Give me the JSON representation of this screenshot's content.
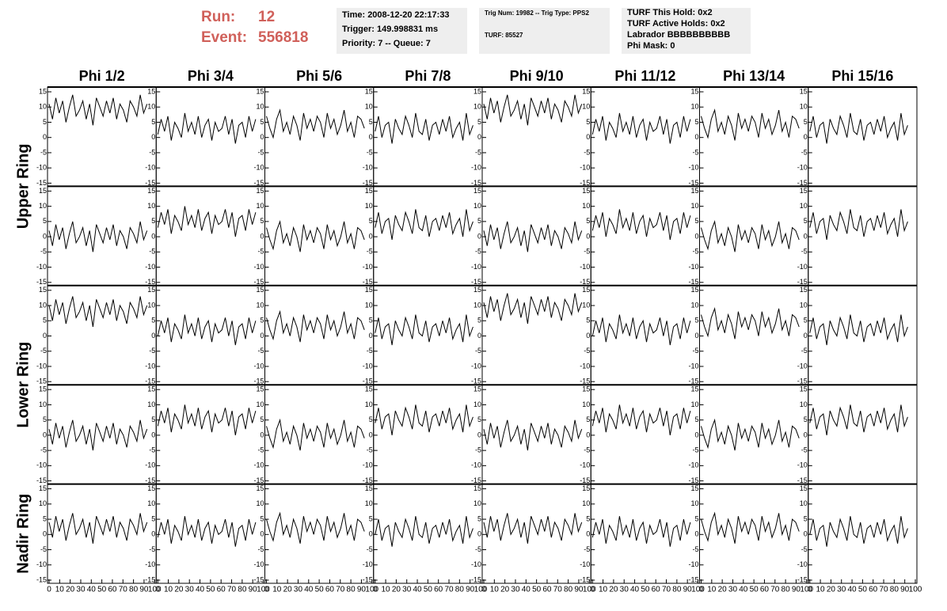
{
  "header": {
    "run_label": "Run:",
    "run": "12",
    "event_label": "Event:",
    "event": "556818",
    "info": [
      [
        "Time: 2008-12-20 22:17:33",
        "Trigger: 149.998831 ms",
        "Priority: 7 -- Queue: 7"
      ],
      [
        "Trig Num: 19982 -- Trig Type: PPS2",
        "TURF: 85527"
      ],
      [
        "TURF This Hold: 0x2",
        "TURF Active Holds: 0x2",
        "Labrador BBBBBBBBBB",
        "Phi Mask: 0"
      ]
    ]
  },
  "chart_data": {
    "type": "line",
    "color": "#000000",
    "columns": [
      "Phi 1/2",
      "Phi 3/4",
      "Phi 5/6",
      "Phi 7/8",
      "Phi 9/10",
      "Phi 11/12",
      "Phi 13/14",
      "Phi 15/16"
    ],
    "rows": [
      "Upper Ring",
      "Lower Ring",
      "Nadir Ring"
    ],
    "xlim": [
      0,
      100
    ],
    "xticks": [
      0,
      10,
      20,
      30,
      40,
      50,
      60,
      70,
      80,
      90,
      100
    ],
    "ylim": [
      -15,
      15
    ],
    "yticks": [
      15,
      10,
      5,
      0,
      -5,
      -10,
      -15
    ],
    "x": [
      0,
      3.2,
      6.4,
      9.6,
      12.8,
      16,
      19.2,
      22.4,
      25.6,
      28.8,
      32,
      35.2,
      38.4,
      41.6,
      44.8,
      48,
      51.2,
      54.4,
      57.6,
      60.8,
      64,
      67.2,
      70.4,
      73.6,
      76.8,
      80,
      83.2,
      86.4,
      89.6,
      92.8
    ],
    "panels": [
      {
        "values": [
          11,
          6,
          13,
          8,
          12,
          5,
          10,
          14,
          7,
          9,
          12,
          6,
          11,
          4,
          13,
          10,
          7,
          12,
          8,
          13,
          6,
          11,
          9,
          5,
          12,
          10,
          7,
          14,
          8,
          11
        ]
      },
      {
        "values": [
          1,
          6,
          2,
          7,
          -1,
          5,
          3,
          0,
          8,
          2,
          5,
          1,
          7,
          0,
          4,
          6,
          -1,
          5,
          2,
          3,
          7,
          1,
          6,
          -2,
          4,
          5,
          0,
          7,
          2,
          6
        ]
      },
      {
        "values": [
          7,
          3,
          0,
          6,
          9,
          2,
          5,
          1,
          7,
          4,
          -1,
          8,
          3,
          6,
          2,
          7,
          5,
          0,
          8,
          3,
          6,
          1,
          4,
          9,
          2,
          5,
          0,
          7,
          6,
          3
        ]
      },
      {
        "values": [
          2,
          7,
          0,
          4,
          5,
          -2,
          6,
          3,
          1,
          7,
          4,
          0,
          8,
          2,
          1,
          6,
          -1,
          4,
          5,
          1,
          6,
          2,
          7,
          0,
          3,
          5,
          -1,
          8,
          1,
          4
        ]
      },
      {
        "values": [
          11,
          6,
          13,
          8,
          12,
          5,
          10,
          14,
          7,
          9,
          12,
          6,
          11,
          4,
          13,
          10,
          7,
          12,
          8,
          13,
          6,
          11,
          9,
          5,
          12,
          10,
          7,
          14,
          8,
          11
        ]
      },
      {
        "values": [
          1,
          6,
          2,
          7,
          -1,
          5,
          3,
          0,
          8,
          2,
          5,
          1,
          7,
          0,
          4,
          6,
          -1,
          5,
          2,
          3,
          7,
          1,
          6,
          -2,
          4,
          5,
          0,
          7,
          2,
          6
        ]
      },
      {
        "values": [
          7,
          3,
          0,
          6,
          9,
          2,
          5,
          1,
          7,
          4,
          -1,
          8,
          3,
          6,
          2,
          7,
          5,
          0,
          8,
          3,
          6,
          1,
          4,
          9,
          2,
          5,
          0,
          7,
          6,
          3
        ]
      },
      {
        "values": [
          2,
          7,
          0,
          4,
          5,
          -2,
          6,
          3,
          1,
          7,
          4,
          0,
          8,
          2,
          1,
          6,
          -1,
          4,
          5,
          1,
          6,
          2,
          7,
          0,
          3,
          5,
          -1,
          8,
          1,
          4
        ]
      },
      {
        "values": [
          2,
          -3,
          4,
          -1,
          3,
          -4,
          1,
          5,
          -2,
          0,
          3,
          -3,
          2,
          -5,
          4,
          1,
          -2,
          3,
          -1,
          4,
          -3,
          2,
          0,
          -4,
          3,
          1,
          -2,
          5,
          -1,
          2
        ]
      },
      {
        "values": [
          3,
          8,
          4,
          9,
          1,
          7,
          5,
          2,
          10,
          4,
          7,
          3,
          9,
          2,
          6,
          8,
          1,
          7,
          4,
          5,
          9,
          3,
          8,
          0,
          6,
          7,
          2,
          9,
          4,
          8
        ]
      },
      {
        "values": [
          3,
          -1,
          -4,
          2,
          5,
          -2,
          1,
          -3,
          3,
          0,
          -5,
          4,
          -1,
          2,
          -2,
          3,
          1,
          -4,
          4,
          -1,
          2,
          -3,
          0,
          5,
          -2,
          1,
          -4,
          3,
          2,
          -1
        ]
      },
      {
        "values": [
          3,
          8,
          1,
          5,
          6,
          -1,
          7,
          4,
          2,
          8,
          5,
          1,
          9,
          3,
          2,
          7,
          0,
          5,
          6,
          2,
          7,
          3,
          8,
          1,
          4,
          6,
          0,
          9,
          2,
          5
        ]
      },
      {
        "values": [
          2,
          -3,
          4,
          -1,
          3,
          -4,
          1,
          5,
          -2,
          0,
          3,
          -3,
          2,
          -5,
          4,
          1,
          -2,
          3,
          -1,
          4,
          -3,
          2,
          0,
          -4,
          3,
          1,
          -2,
          5,
          -1,
          2
        ]
      },
      {
        "values": [
          2,
          7,
          3,
          8,
          0,
          6,
          4,
          1,
          9,
          3,
          6,
          2,
          8,
          1,
          5,
          7,
          0,
          6,
          3,
          4,
          8,
          2,
          7,
          -1,
          5,
          6,
          1,
          8,
          3,
          7
        ]
      },
      {
        "values": [
          3,
          -1,
          -4,
          2,
          5,
          -2,
          1,
          -3,
          3,
          0,
          -5,
          4,
          -1,
          2,
          -2,
          3,
          1,
          -4,
          4,
          -1,
          2,
          -3,
          0,
          5,
          -2,
          1,
          -4,
          3,
          2,
          -1
        ]
      },
      {
        "values": [
          3,
          8,
          1,
          5,
          6,
          -1,
          7,
          4,
          2,
          8,
          5,
          1,
          9,
          3,
          2,
          7,
          0,
          5,
          6,
          2,
          7,
          3,
          8,
          1,
          4,
          6,
          0,
          9,
          2,
          5
        ]
      },
      {
        "values": [
          10,
          5,
          12,
          7,
          11,
          4,
          9,
          13,
          6,
          8,
          11,
          5,
          10,
          3,
          12,
          9,
          6,
          11,
          7,
          12,
          5,
          10,
          8,
          4,
          11,
          9,
          6,
          13,
          7,
          10
        ]
      },
      {
        "values": [
          0,
          5,
          1,
          6,
          -2,
          4,
          2,
          -1,
          7,
          1,
          4,
          0,
          6,
          -1,
          3,
          5,
          -2,
          4,
          1,
          2,
          6,
          0,
          5,
          -3,
          3,
          4,
          -1,
          6,
          1,
          5
        ]
      },
      {
        "values": [
          6,
          2,
          -1,
          5,
          8,
          1,
          4,
          0,
          6,
          3,
          -2,
          7,
          2,
          5,
          1,
          6,
          4,
          -1,
          7,
          2,
          5,
          0,
          3,
          8,
          1,
          4,
          -1,
          6,
          5,
          2
        ]
      },
      {
        "values": [
          1,
          6,
          -1,
          3,
          4,
          -3,
          5,
          2,
          0,
          6,
          3,
          -1,
          7,
          1,
          0,
          5,
          -2,
          3,
          4,
          0,
          5,
          1,
          6,
          -1,
          2,
          4,
          -2,
          7,
          0,
          3
        ]
      },
      {
        "values": [
          11,
          6,
          13,
          8,
          12,
          5,
          10,
          14,
          7,
          9,
          12,
          6,
          11,
          4,
          13,
          10,
          7,
          12,
          8,
          13,
          6,
          11,
          9,
          5,
          12,
          10,
          7,
          14,
          8,
          11
        ]
      },
      {
        "values": [
          0,
          5,
          1,
          6,
          -2,
          4,
          2,
          -1,
          7,
          1,
          4,
          0,
          6,
          -1,
          3,
          5,
          -2,
          4,
          1,
          2,
          6,
          0,
          5,
          -3,
          3,
          4,
          -1,
          6,
          1,
          5
        ]
      },
      {
        "values": [
          7,
          3,
          0,
          6,
          9,
          2,
          5,
          1,
          7,
          4,
          -1,
          8,
          3,
          6,
          2,
          7,
          5,
          0,
          8,
          3,
          6,
          1,
          4,
          9,
          2,
          5,
          0,
          7,
          6,
          3
        ]
      },
      {
        "values": [
          1,
          6,
          -1,
          3,
          4,
          -3,
          5,
          2,
          0,
          6,
          3,
          -1,
          7,
          1,
          0,
          5,
          -2,
          3,
          4,
          0,
          5,
          1,
          6,
          -1,
          2,
          4,
          -2,
          7,
          0,
          3
        ]
      },
      {
        "values": [
          2,
          -3,
          4,
          -1,
          3,
          -4,
          1,
          5,
          -2,
          0,
          3,
          -3,
          2,
          -5,
          4,
          1,
          -2,
          3,
          -1,
          4,
          -3,
          2,
          0,
          -4,
          3,
          1,
          -2,
          5,
          -1,
          2
        ]
      },
      {
        "values": [
          3,
          8,
          4,
          9,
          1,
          7,
          5,
          2,
          10,
          4,
          7,
          3,
          9,
          2,
          6,
          8,
          1,
          7,
          4,
          5,
          9,
          3,
          8,
          0,
          6,
          7,
          2,
          9,
          4,
          8
        ]
      },
      {
        "values": [
          3,
          -1,
          -4,
          2,
          5,
          -2,
          1,
          -3,
          3,
          0,
          -5,
          4,
          -1,
          2,
          -2,
          3,
          1,
          -4,
          4,
          -1,
          2,
          -3,
          0,
          5,
          -2,
          1,
          -4,
          3,
          2,
          -1
        ]
      },
      {
        "values": [
          4,
          9,
          2,
          6,
          7,
          0,
          8,
          5,
          3,
          9,
          6,
          2,
          10,
          4,
          3,
          8,
          1,
          6,
          7,
          3,
          8,
          4,
          9,
          2,
          5,
          7,
          1,
          10,
          3,
          6
        ]
      },
      {
        "values": [
          2,
          -3,
          4,
          -1,
          3,
          -4,
          1,
          5,
          -2,
          0,
          3,
          -3,
          2,
          -5,
          4,
          1,
          -2,
          3,
          -1,
          4,
          -3,
          2,
          0,
          -4,
          3,
          1,
          -2,
          5,
          -1,
          2
        ]
      },
      {
        "values": [
          3,
          8,
          4,
          9,
          1,
          7,
          5,
          2,
          10,
          4,
          7,
          3,
          9,
          2,
          6,
          8,
          1,
          7,
          4,
          5,
          9,
          3,
          8,
          0,
          6,
          7,
          2,
          9,
          4,
          8
        ]
      },
      {
        "values": [
          3,
          -1,
          -4,
          2,
          5,
          -2,
          1,
          -3,
          3,
          0,
          -5,
          4,
          -1,
          2,
          -2,
          3,
          1,
          -4,
          4,
          -1,
          2,
          -3,
          0,
          5,
          -2,
          1,
          -4,
          3,
          2,
          -1
        ]
      },
      {
        "values": [
          4,
          9,
          2,
          6,
          7,
          0,
          8,
          5,
          3,
          9,
          6,
          2,
          10,
          4,
          3,
          8,
          1,
          6,
          7,
          3,
          8,
          4,
          9,
          2,
          5,
          7,
          1,
          10,
          3,
          6
        ]
      },
      {
        "values": [
          4,
          -1,
          6,
          1,
          5,
          -2,
          3,
          7,
          0,
          2,
          5,
          -1,
          4,
          -3,
          6,
          3,
          0,
          5,
          1,
          6,
          -1,
          4,
          2,
          -2,
          5,
          3,
          0,
          7,
          1,
          4
        ]
      },
      {
        "values": [
          -1,
          4,
          0,
          5,
          -3,
          3,
          1,
          -2,
          6,
          0,
          3,
          -1,
          5,
          -2,
          2,
          4,
          -3,
          3,
          0,
          1,
          5,
          -1,
          4,
          -4,
          2,
          3,
          -2,
          5,
          0,
          4
        ]
      },
      {
        "values": [
          5,
          1,
          -2,
          4,
          7,
          0,
          3,
          -1,
          5,
          2,
          -3,
          6,
          1,
          4,
          0,
          5,
          3,
          -2,
          6,
          1,
          4,
          -1,
          2,
          7,
          0,
          3,
          -2,
          5,
          4,
          1
        ]
      },
      {
        "values": [
          0,
          5,
          -2,
          2,
          3,
          -4,
          4,
          1,
          -1,
          5,
          2,
          -2,
          6,
          0,
          -1,
          4,
          -3,
          2,
          3,
          -1,
          4,
          0,
          5,
          -2,
          1,
          3,
          -3,
          6,
          -1,
          2
        ]
      },
      {
        "values": [
          4,
          -1,
          6,
          1,
          5,
          -2,
          3,
          7,
          0,
          2,
          5,
          -1,
          4,
          -3,
          6,
          3,
          0,
          5,
          1,
          6,
          -1,
          4,
          2,
          -2,
          5,
          3,
          0,
          7,
          1,
          4
        ]
      },
      {
        "values": [
          -1,
          4,
          0,
          5,
          -3,
          3,
          1,
          -2,
          6,
          0,
          3,
          -1,
          5,
          -2,
          2,
          4,
          -3,
          3,
          0,
          1,
          5,
          -1,
          4,
          -4,
          2,
          3,
          -2,
          5,
          0,
          4
        ]
      },
      {
        "values": [
          5,
          1,
          -2,
          4,
          7,
          0,
          3,
          -1,
          5,
          2,
          -3,
          6,
          1,
          4,
          0,
          5,
          3,
          -2,
          6,
          1,
          4,
          -1,
          2,
          7,
          0,
          3,
          -2,
          5,
          4,
          1
        ]
      },
      {
        "values": [
          0,
          5,
          -2,
          2,
          3,
          -4,
          4,
          1,
          -1,
          5,
          2,
          -2,
          6,
          0,
          -1,
          4,
          -3,
          2,
          3,
          -1,
          4,
          0,
          5,
          -2,
          1,
          3,
          -3,
          6,
          -1,
          2
        ]
      }
    ]
  }
}
